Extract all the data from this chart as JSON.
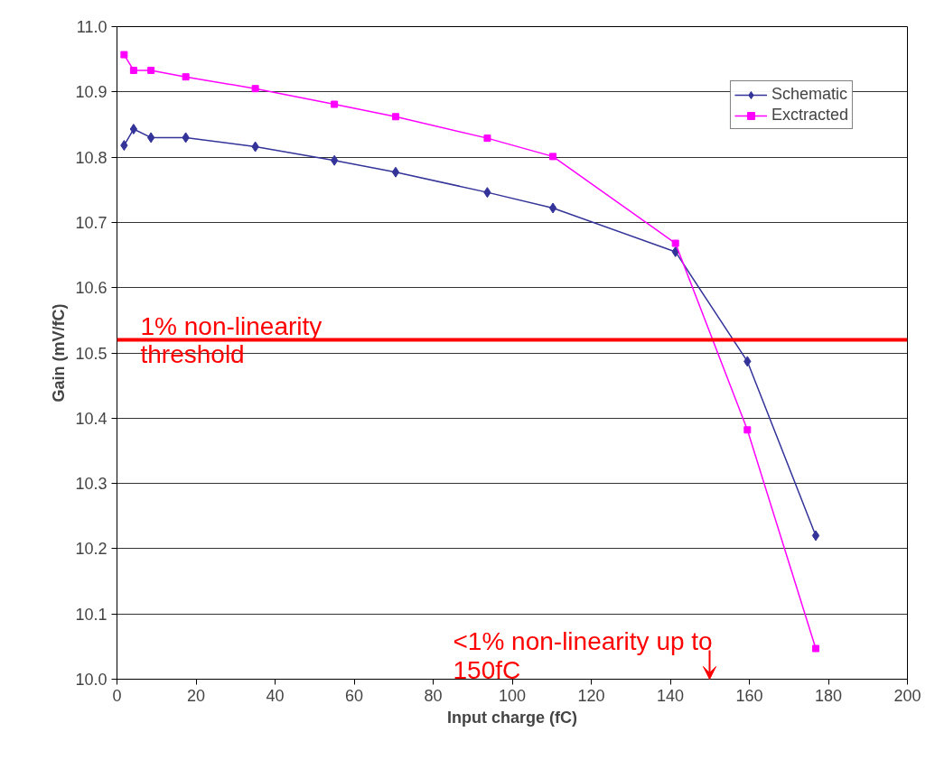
{
  "chart_data": {
    "type": "line",
    "xlabel": "Input charge (fC)",
    "ylabel": "Gain (mV/fC)",
    "xlim": [
      0,
      200
    ],
    "xticks": [
      0,
      20,
      40,
      60,
      80,
      100,
      120,
      140,
      160,
      180,
      200
    ],
    "ylim": [
      10.0,
      11.0
    ],
    "yticks": [
      {
        "value": 10.0,
        "label": "10.0"
      },
      {
        "value": 10.1,
        "label": "10.1"
      },
      {
        "value": 10.2,
        "label": "10.2"
      },
      {
        "value": 10.3,
        "label": "10.3"
      },
      {
        "value": 10.4,
        "label": "10.4"
      },
      {
        "value": 10.5,
        "label": "10.5"
      },
      {
        "value": 10.6,
        "label": "10.6"
      },
      {
        "value": 10.7,
        "label": "10.7"
      },
      {
        "value": 10.8,
        "label": "10.8"
      },
      {
        "value": 10.9,
        "label": "10.9"
      },
      {
        "value": 11.0,
        "label": "11.0"
      }
    ],
    "grid": "y",
    "legend": "top right",
    "series": [
      {
        "name": "Schematic",
        "color": "#333399",
        "marker": "diamond",
        "x": [
          1.8,
          4.2,
          8.6,
          17.4,
          35,
          55,
          70.5,
          93.7,
          110.3,
          141.3,
          159.5,
          176.8
        ],
        "values": [
          10.818,
          10.843,
          10.83,
          10.83,
          10.816,
          10.795,
          10.777,
          10.746,
          10.722,
          10.655,
          10.487,
          10.22
        ]
      },
      {
        "name": "Exctracted",
        "color": "#ff00ff",
        "marker": "square",
        "x": [
          1.8,
          4.2,
          8.6,
          17.4,
          35,
          55,
          70.5,
          93.7,
          110.3,
          141.3,
          159.5,
          176.8
        ],
        "values": [
          10.957,
          10.933,
          10.933,
          10.923,
          10.905,
          10.881,
          10.862,
          10.829,
          10.801,
          10.668,
          10.382,
          10.047
        ]
      }
    ],
    "ref_lines": [
      {
        "axis": "y",
        "value": 10.52,
        "label": "1% non-linearity threshold",
        "color": "#ff0000"
      }
    ],
    "annotations": [
      "<1% non-linearity up to 150fC"
    ]
  }
}
